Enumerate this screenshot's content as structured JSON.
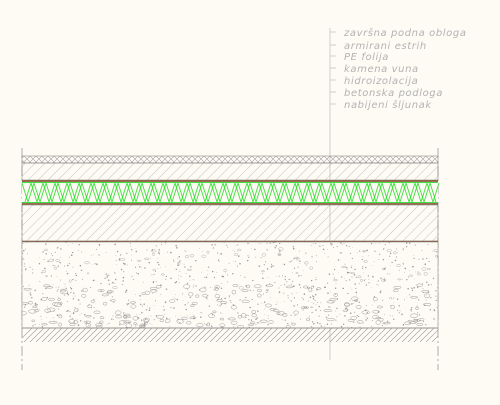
{
  "layers": [
    {
      "id": "floor-finish",
      "label": "završna podna obloga"
    },
    {
      "id": "screed",
      "label": "armirani estrih"
    },
    {
      "id": "pe-foil",
      "label": "PE folija"
    },
    {
      "id": "insulation",
      "label": "kamena vuna"
    },
    {
      "id": "waterproofing",
      "label": "hidroizolacija"
    },
    {
      "id": "concrete-base",
      "label": "betonska podloga"
    },
    {
      "id": "gravel",
      "label": "nabijeni šljunak"
    }
  ],
  "colors": {
    "background": "#fdfbf4",
    "line": "#8a8a8a",
    "hatch": "#a8a8a8",
    "insulation": "#3fe03f",
    "membrane": "#8b5a3c",
    "legend": "#b3b3b3"
  }
}
